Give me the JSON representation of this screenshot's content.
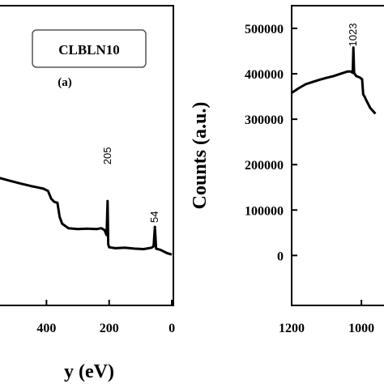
{
  "chart_data": [
    {
      "type": "line",
      "title": "CLBLN10",
      "panel_label": "(a)",
      "xlabel": "y (eV)",
      "ylabel": "",
      "x_reversed": true,
      "xlim": [
        -5,
        600
      ],
      "ylim": [
        -110000,
        550000
      ],
      "x_ticks": [
        {
          "value": 400,
          "label": "400"
        },
        {
          "value": 200,
          "label": "200"
        },
        {
          "value": 0,
          "label": "0"
        }
      ],
      "annotations": [
        {
          "text": "205",
          "x": 205,
          "y": 200000
        },
        {
          "text": "54",
          "x": 54,
          "y": 72000
        }
      ],
      "series": [
        {
          "values_x": [
            600,
            520,
            480,
            450,
            430,
            410,
            395,
            385,
            375,
            365,
            358,
            350,
            330,
            300,
            270,
            240,
            225,
            215,
            208,
            205,
            203,
            200,
            180,
            150,
            120,
            90,
            65,
            58,
            54,
            50,
            35,
            15,
            0
          ],
          "values_y": [
            180000,
            165000,
            158000,
            153000,
            150000,
            147000,
            142000,
            125000,
            118000,
            116000,
            85000,
            70000,
            60000,
            58000,
            59000,
            58000,
            60000,
            56000,
            45000,
            120000,
            25000,
            18000,
            16000,
            17000,
            15000,
            14000,
            17000,
            20000,
            63000,
            15000,
            12000,
            5000,
            2000
          ]
        }
      ]
    },
    {
      "type": "line",
      "title": "",
      "xlabel": "",
      "ylabel": "Counts (a.u.)",
      "x_reversed": true,
      "xlim": [
        875,
        1200
      ],
      "ylim": [
        -110000,
        550000
      ],
      "y_ticks": [
        {
          "value": 500000,
          "label": "500000"
        },
        {
          "value": 400000,
          "label": "400000"
        },
        {
          "value": 300000,
          "label": "300000"
        },
        {
          "value": 200000,
          "label": "200000"
        },
        {
          "value": 100000,
          "label": "100000"
        },
        {
          "value": 0,
          "label": "0"
        }
      ],
      "x_ticks": [
        {
          "value": 1200,
          "label": "1200"
        },
        {
          "value": 1000,
          "label": "1000"
        }
      ],
      "annotations": [
        {
          "text": "1023",
          "x": 1023,
          "y": 460000
        }
      ],
      "series": [
        {
          "values_x": [
            1200,
            1180,
            1160,
            1140,
            1120,
            1100,
            1080,
            1060,
            1040,
            1030,
            1025,
            1023,
            1021,
            1015,
            1005,
            998,
            995,
            990,
            985,
            975,
            960
          ],
          "values_y": [
            358000,
            368000,
            377000,
            382000,
            387000,
            391000,
            395000,
            400000,
            405000,
            405000,
            402000,
            458000,
            402000,
            395000,
            392000,
            388000,
            355000,
            348000,
            340000,
            325000,
            312000
          ]
        }
      ]
    }
  ]
}
